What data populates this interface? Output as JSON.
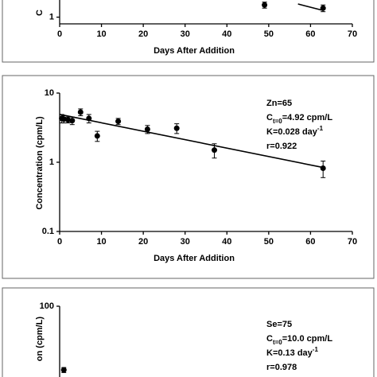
{
  "chart_data": [
    {
      "type": "scatter",
      "y_label": "C",
      "x_label": "Days After Addition",
      "xlim": [
        0,
        70
      ],
      "xticks": [
        0,
        10,
        20,
        30,
        40,
        50,
        60,
        70
      ],
      "ylim": [
        0.8,
        80
      ],
      "yticks": [
        1
      ],
      "log_y": true,
      "series": [
        {
          "x": [
            49,
            63
          ],
          "values": [
            1.5,
            1.35
          ],
          "errors": [
            0.15,
            0.15
          ]
        }
      ],
      "fit": {
        "x": [
          57,
          63
        ],
        "values": [
          1.55,
          1.25
        ]
      }
    },
    {
      "type": "scatter",
      "y_label": "Concentration (cpm/L)",
      "x_label": "Days After Addition",
      "xlim": [
        0,
        70
      ],
      "xticks": [
        0,
        10,
        20,
        30,
        40,
        50,
        60,
        70
      ],
      "ylim": [
        0.1,
        10
      ],
      "yticks": [
        0.1,
        1,
        10
      ],
      "log_y": true,
      "series": [
        {
          "x": [
            0.5,
            1,
            2,
            3,
            5,
            7,
            9,
            14,
            21,
            28,
            37,
            63
          ],
          "values": [
            4.3,
            4.2,
            4.1,
            4.0,
            5.3,
            4.3,
            2.4,
            3.9,
            3.0,
            3.1,
            1.5,
            0.82
          ],
          "errors": [
            0.6,
            0.5,
            0.4,
            0.5,
            0.6,
            0.6,
            0.4,
            0.4,
            0.4,
            0.5,
            0.35,
            0.22
          ]
        }
      ],
      "fit": {
        "x": [
          0,
          63
        ],
        "values": [
          4.92,
          0.84
        ]
      },
      "annotations": [
        [
          {
            "text": "Zn=65"
          }
        ],
        [
          {
            "text": "C"
          },
          {
            "sub": "t=0"
          },
          {
            "text": "=4.92 cpm/L"
          }
        ],
        [
          {
            "text": "K=0.028 day"
          },
          {
            "sup": "-1"
          }
        ],
        [
          {
            "text": "r=0.922"
          }
        ]
      ]
    },
    {
      "type": "scatter",
      "y_label": "on (cpm/L)",
      "xlim": [
        0,
        70
      ],
      "ylim": [
        0.1,
        100
      ],
      "yticks": [
        100
      ],
      "log_y": true,
      "series": [
        {
          "x": [
            1
          ],
          "values": [
            12
          ],
          "errors": [
            1
          ]
        }
      ],
      "annotations": [
        [
          {
            "text": "Se=75"
          }
        ],
        [
          {
            "text": "C"
          },
          {
            "sub": "t=0"
          },
          {
            "text": "=10.0 cpm/L"
          }
        ],
        [
          {
            "text": "K=0.13 day"
          },
          {
            "sup": "-1"
          }
        ],
        [
          {
            "text": "r=0.978"
          }
        ]
      ]
    }
  ]
}
